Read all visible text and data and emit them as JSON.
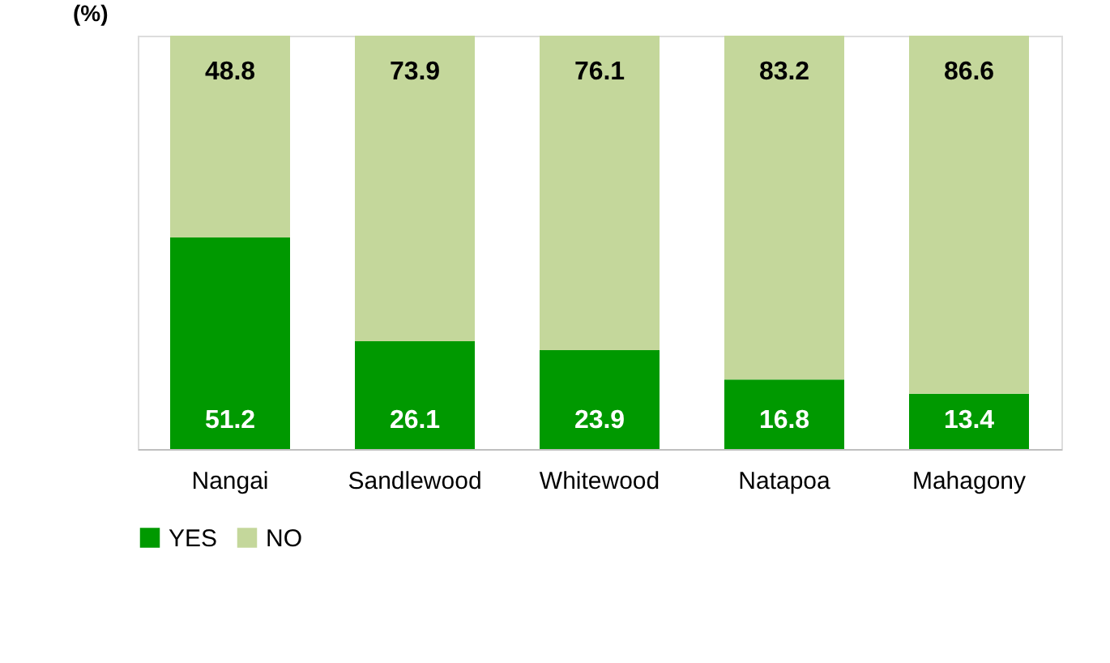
{
  "chart_data": {
    "type": "bar",
    "stacked": true,
    "ylabel": "(%)",
    "categories": [
      "Nangai",
      "Sandlewood",
      "Whitewood",
      "Natapoa",
      "Mahagony"
    ],
    "series": [
      {
        "name": "YES",
        "color": "#009900",
        "values": [
          51.2,
          26.1,
          23.9,
          16.8,
          13.4
        ]
      },
      {
        "name": "NO",
        "color": "#c4d79b",
        "values": [
          48.8,
          73.9,
          76.1,
          83.2,
          86.6
        ]
      }
    ],
    "ylim": [
      0,
      100
    ],
    "tick_labels": "x",
    "data_labels": true,
    "grid": false,
    "legend": "bottom"
  }
}
